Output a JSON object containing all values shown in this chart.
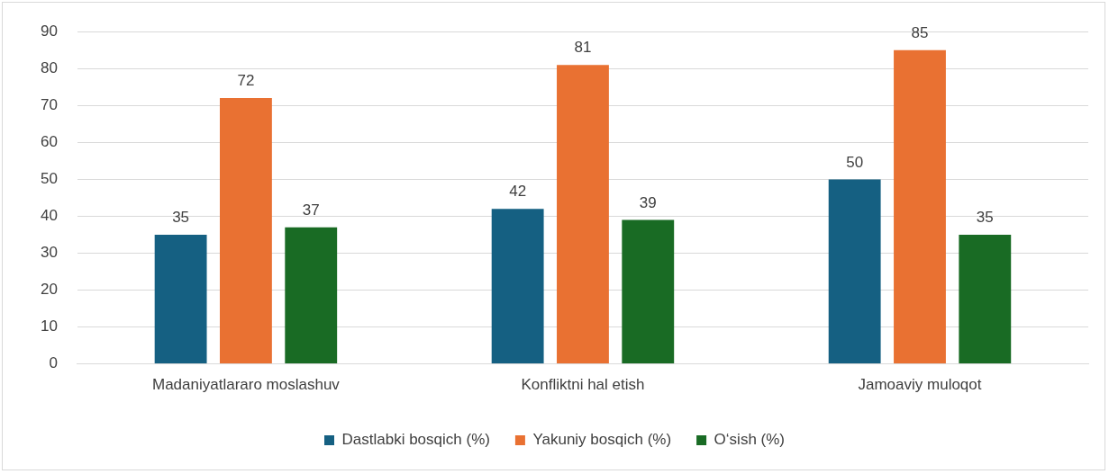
{
  "chart_data": {
    "type": "bar",
    "categories": [
      "Madaniyatlararo moslashuv",
      "Konfliktni hal etish",
      "Jamoaviy muloqot"
    ],
    "series": [
      {
        "name": "Dastlabki bosqich (%)",
        "color": "#156082",
        "values": [
          35,
          42,
          50
        ]
      },
      {
        "name": "Yakuniy bosqich (%)",
        "color": "#e97132",
        "values": [
          72,
          81,
          85
        ]
      },
      {
        "name": "O‘sish (%)",
        "color": "#196b24",
        "values": [
          37,
          39,
          35
        ]
      }
    ],
    "ylim": [
      0,
      90
    ],
    "yticks": [
      0,
      10,
      20,
      30,
      40,
      50,
      60,
      70,
      80,
      90
    ],
    "grid": "y",
    "legend": "bottom",
    "data_labels": true
  }
}
